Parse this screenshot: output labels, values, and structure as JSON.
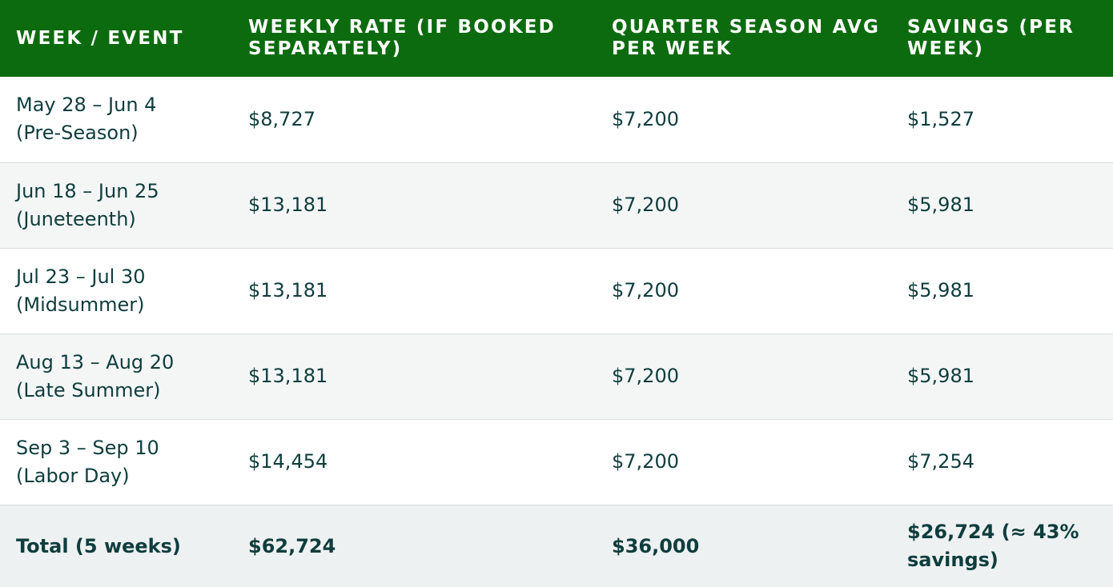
{
  "table": {
    "headers": [
      "WEEK / EVENT",
      "WEEKLY RATE (IF BOOKED SEPARATELY)",
      "QUARTER SEASON AVG PER WEEK",
      "SAVINGS (PER WEEK)"
    ],
    "rows": [
      {
        "week": "May 28 – Jun 4",
        "event": "(Pre-Season)",
        "weekly_rate": "$8,727",
        "quarter_avg": "$7,200",
        "savings": "$1,527"
      },
      {
        "week": "Jun 18 – Jun 25",
        "event": "(Juneteenth)",
        "weekly_rate": "$13,181",
        "quarter_avg": "$7,200",
        "savings": "$5,981"
      },
      {
        "week": "Jul 23 – Jul 30",
        "event": "(Midsummer)",
        "weekly_rate": "$13,181",
        "quarter_avg": "$7,200",
        "savings": "$5,981"
      },
      {
        "week": "Aug 13 – Aug 20",
        "event": "(Late Summer)",
        "weekly_rate": "$13,181",
        "quarter_avg": "$7,200",
        "savings": "$5,981"
      },
      {
        "week": "Sep 3 – Sep 10",
        "event": "(Labor Day)",
        "weekly_rate": "$14,454",
        "quarter_avg": "$7,200",
        "savings": "$7,254"
      }
    ],
    "total": {
      "label": "Total (5 weeks)",
      "weekly_rate": "$62,724",
      "quarter_avg": "$36,000",
      "savings": "$26,724 (≈ 43% savings)"
    }
  },
  "colors": {
    "header_bg": "#0d6b0f",
    "header_text": "#ffffff",
    "body_text": "#0f3d3e",
    "alt_row_bg": "#f4f6f6",
    "total_row_bg": "#eef1f1"
  }
}
